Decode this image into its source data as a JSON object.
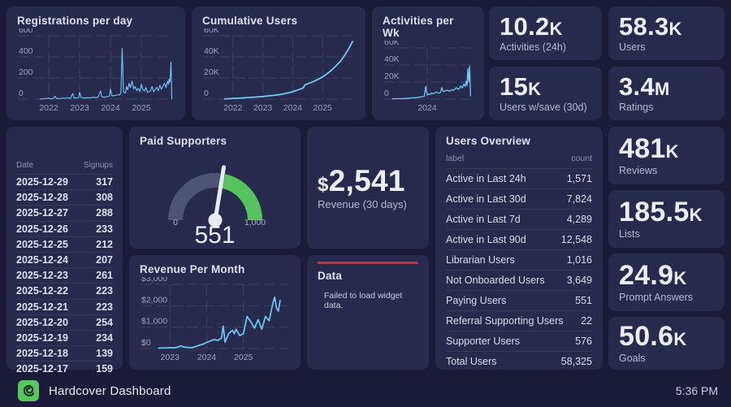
{
  "app": {
    "title": "Hardcover Dashboard",
    "time": "5:36 PM"
  },
  "colors": {
    "background": "#191b38",
    "panel": "#262b4e",
    "accent_blue": "#72c7f3",
    "gauge_green": "#56c45c",
    "gauge_gray": "#4d5374",
    "error_red": "#9e4350",
    "logo_green": "#54c55f"
  },
  "stats": {
    "top": [
      {
        "value": "10.2",
        "suffix": "K",
        "label": "Activities (24h)"
      },
      {
        "value": "58.3",
        "suffix": "K",
        "label": "Users"
      },
      {
        "value": "15",
        "suffix": "K",
        "label": "Users w/save (30d)"
      },
      {
        "value": "3.4",
        "suffix": "M",
        "label": "Ratings"
      }
    ],
    "right": [
      {
        "value": "481",
        "suffix": "K",
        "label": "Reviews"
      },
      {
        "value": "185.5",
        "suffix": "K",
        "label": "Lists"
      },
      {
        "value": "24.9",
        "suffix": "K",
        "label": "Prompt Answers"
      },
      {
        "value": "50.6",
        "suffix": "K",
        "label": "Goals"
      }
    ],
    "revenue": {
      "prefix": "$",
      "value": "2,541",
      "label": "Revenue (30 days)"
    }
  },
  "signups_table": {
    "headers": [
      "Date",
      "Signups"
    ],
    "rows": [
      [
        "2025-12-29",
        "317"
      ],
      [
        "2025-12-28",
        "308"
      ],
      [
        "2025-12-27",
        "288"
      ],
      [
        "2025-12-26",
        "233"
      ],
      [
        "2025-12-25",
        "212"
      ],
      [
        "2025-12-24",
        "207"
      ],
      [
        "2025-12-23",
        "261"
      ],
      [
        "2025-12-22",
        "223"
      ],
      [
        "2025-12-21",
        "223"
      ],
      [
        "2025-12-20",
        "254"
      ],
      [
        "2025-12-19",
        "234"
      ],
      [
        "2025-12-18",
        "139"
      ],
      [
        "2025-12-17",
        "159"
      ]
    ]
  },
  "users_overview": {
    "title": "Users Overview",
    "headers": [
      "label",
      "count"
    ],
    "rows": [
      [
        "Active in Last 24h",
        "1,571"
      ],
      [
        "Active in Last 30d",
        "7,824"
      ],
      [
        "Active in Last 7d",
        "4,289"
      ],
      [
        "Active in Last 90d",
        "12,548"
      ],
      [
        "Librarian Users",
        "1,016"
      ],
      [
        "Not Onboarded Users",
        "3,649"
      ],
      [
        "Paying Users",
        "551"
      ],
      [
        "Referral Supporting Users",
        "22"
      ],
      [
        "Supporter Users",
        "576"
      ],
      [
        "Total Users",
        "58,325"
      ]
    ]
  },
  "gauge": {
    "title": "Paid Supporters",
    "min": 0,
    "max": 1000,
    "value": 551,
    "min_label": "0",
    "max_label": "1,000",
    "value_label": "551"
  },
  "error_panel": {
    "title": "Data",
    "message": "Failed to load widget data."
  },
  "chart_data": [
    {
      "type": "line",
      "title": "Registrations per day",
      "xlabel": "",
      "ylabel": "",
      "xlim": [
        2021.0,
        2026.0
      ],
      "ylim": [
        0,
        600
      ],
      "y_ticks": [
        [
          0,
          "0"
        ],
        [
          200,
          "200"
        ],
        [
          400,
          "400"
        ],
        [
          600,
          "600"
        ]
      ],
      "x_ticks": [
        [
          2022,
          "2022"
        ],
        [
          2023,
          "2023"
        ],
        [
          2024,
          "2024"
        ],
        [
          2025,
          "2025"
        ]
      ],
      "line_color": "#72c7f3",
      "line_width": 1.1,
      "grid": true,
      "legend": "none",
      "points": [
        [
          2021.72,
          1
        ],
        [
          2021.85,
          3
        ],
        [
          2021.95,
          6
        ],
        [
          2022.0,
          10
        ],
        [
          2022.05,
          4
        ],
        [
          2022.15,
          6
        ],
        [
          2022.2,
          28
        ],
        [
          2022.25,
          7
        ],
        [
          2022.35,
          5
        ],
        [
          2022.45,
          9
        ],
        [
          2022.55,
          8
        ],
        [
          2022.6,
          14
        ],
        [
          2022.7,
          8
        ],
        [
          2022.78,
          52
        ],
        [
          2022.82,
          12
        ],
        [
          2022.9,
          10
        ],
        [
          2022.97,
          14
        ],
        [
          2023.0,
          64
        ],
        [
          2023.05,
          16
        ],
        [
          2023.15,
          10
        ],
        [
          2023.25,
          14
        ],
        [
          2023.35,
          12
        ],
        [
          2023.45,
          18
        ],
        [
          2023.5,
          14
        ],
        [
          2023.6,
          20
        ],
        [
          2023.68,
          78
        ],
        [
          2023.72,
          22
        ],
        [
          2023.8,
          18
        ],
        [
          2023.9,
          24
        ],
        [
          2023.97,
          30
        ],
        [
          2024.0,
          96
        ],
        [
          2024.05,
          30
        ],
        [
          2024.15,
          34
        ],
        [
          2024.25,
          42
        ],
        [
          2024.3,
          38
        ],
        [
          2024.34,
          62
        ],
        [
          2024.38,
          480
        ],
        [
          2024.42,
          70
        ],
        [
          2024.48,
          56
        ],
        [
          2024.52,
          120
        ],
        [
          2024.56,
          88
        ],
        [
          2024.6,
          150
        ],
        [
          2024.65,
          110
        ],
        [
          2024.7,
          170
        ],
        [
          2024.75,
          96
        ],
        [
          2024.8,
          120
        ],
        [
          2024.85,
          80
        ],
        [
          2024.9,
          100
        ],
        [
          2024.95,
          72
        ],
        [
          2025.0,
          140
        ],
        [
          2025.05,
          90
        ],
        [
          2025.1,
          76
        ],
        [
          2025.15,
          110
        ],
        [
          2025.2,
          64
        ],
        [
          2025.3,
          80
        ],
        [
          2025.35,
          120
        ],
        [
          2025.4,
          70
        ],
        [
          2025.45,
          90
        ],
        [
          2025.5,
          110
        ],
        [
          2025.55,
          80
        ],
        [
          2025.6,
          130
        ],
        [
          2025.65,
          95
        ],
        [
          2025.7,
          120
        ],
        [
          2025.75,
          150
        ],
        [
          2025.8,
          110
        ],
        [
          2025.85,
          170
        ],
        [
          2025.88,
          140
        ],
        [
          2025.9,
          190
        ],
        [
          2025.93,
          160
        ],
        [
          2025.96,
          350
        ],
        [
          2025.99,
          0
        ]
      ]
    },
    {
      "type": "line",
      "title": "Cumulative Users",
      "xlabel": "",
      "ylabel": "",
      "xlim": [
        2021.0,
        2026.0
      ],
      "ylim": [
        0,
        60000
      ],
      "y_ticks": [
        [
          0,
          "0"
        ],
        [
          20000,
          "20K"
        ],
        [
          40000,
          "40K"
        ],
        [
          60000,
          "60K"
        ]
      ],
      "x_ticks": [
        [
          2022,
          "2022"
        ],
        [
          2023,
          "2023"
        ],
        [
          2024,
          "2024"
        ],
        [
          2025,
          "2025"
        ]
      ],
      "line_color": "#72c7f3",
      "line_width": 1.8,
      "grid": true,
      "legend": "none",
      "points": [
        [
          2021.72,
          100
        ],
        [
          2022.0,
          700
        ],
        [
          2022.3,
          1100
        ],
        [
          2022.6,
          1600
        ],
        [
          2022.9,
          2200
        ],
        [
          2023.0,
          2500
        ],
        [
          2023.3,
          3400
        ],
        [
          2023.6,
          4400
        ],
        [
          2023.9,
          6200
        ],
        [
          2024.0,
          7000
        ],
        [
          2024.2,
          9000
        ],
        [
          2024.35,
          10500
        ],
        [
          2024.4,
          13200
        ],
        [
          2024.5,
          14500
        ],
        [
          2024.7,
          16800
        ],
        [
          2024.9,
          19500
        ],
        [
          2025.0,
          21000
        ],
        [
          2025.15,
          24000
        ],
        [
          2025.3,
          27500
        ],
        [
          2025.45,
          31500
        ],
        [
          2025.6,
          36000
        ],
        [
          2025.75,
          42000
        ],
        [
          2025.9,
          49000
        ],
        [
          2026.0,
          54500
        ]
      ]
    },
    {
      "type": "line",
      "title": "Activities per Wk",
      "xlabel": "",
      "ylabel": "",
      "xlim": [
        2023.0,
        2026.0
      ],
      "ylim": [
        0,
        60000
      ],
      "y_ticks": [
        [
          0,
          "0"
        ],
        [
          20000,
          "20K"
        ],
        [
          40000,
          "40K"
        ],
        [
          60000,
          "60K"
        ]
      ],
      "x_ticks": [
        [
          2024.5,
          "2024"
        ]
      ],
      "line_color": "#72c7f3",
      "line_width": 1.3,
      "grid": true,
      "legend": "none",
      "points": [
        [
          2023.3,
          400
        ],
        [
          2023.45,
          600
        ],
        [
          2023.6,
          500
        ],
        [
          2023.75,
          800
        ],
        [
          2023.9,
          1100
        ],
        [
          2024.0,
          1600
        ],
        [
          2024.1,
          1400
        ],
        [
          2024.2,
          2200
        ],
        [
          2024.3,
          2600
        ],
        [
          2024.4,
          3400
        ],
        [
          2024.45,
          14800
        ],
        [
          2024.5,
          4800
        ],
        [
          2024.55,
          6200
        ],
        [
          2024.6,
          5400
        ],
        [
          2024.65,
          7200
        ],
        [
          2024.7,
          6200
        ],
        [
          2024.8,
          8200
        ],
        [
          2024.9,
          7000
        ],
        [
          2024.95,
          7600
        ],
        [
          2025.0,
          13500
        ],
        [
          2025.05,
          8800
        ],
        [
          2025.1,
          9600
        ],
        [
          2025.2,
          10400
        ],
        [
          2025.25,
          9200
        ],
        [
          2025.35,
          11000
        ],
        [
          2025.4,
          10200
        ],
        [
          2025.5,
          13500
        ],
        [
          2025.55,
          11500
        ],
        [
          2025.6,
          12500
        ],
        [
          2025.65,
          15500
        ],
        [
          2025.7,
          13000
        ],
        [
          2025.75,
          17500
        ],
        [
          2025.8,
          15000
        ],
        [
          2025.83,
          21000
        ],
        [
          2025.86,
          16000
        ],
        [
          2025.89,
          35500
        ],
        [
          2025.92,
          20000
        ],
        [
          2025.95,
          38500
        ],
        [
          2025.98,
          4000
        ]
      ]
    },
    {
      "type": "line",
      "title": "Revenue Per Month",
      "xlabel": "",
      "ylabel": "",
      "xlim": [
        2022.2,
        2026.2
      ],
      "ylim": [
        0,
        3000
      ],
      "y_ticks": [
        [
          0,
          "$0"
        ],
        [
          1000,
          "$1,000"
        ],
        [
          2000,
          "$2,000"
        ],
        [
          3000,
          "$3,000"
        ]
      ],
      "x_ticks": [
        [
          2023,
          "2023"
        ],
        [
          2024,
          "2024"
        ],
        [
          2025,
          "2025"
        ]
      ],
      "line_color": "#72c7f3",
      "line_width": 1.7,
      "grid": true,
      "legend": "none",
      "points": [
        [
          2022.7,
          20
        ],
        [
          2022.8,
          30
        ],
        [
          2022.9,
          25
        ],
        [
          2023.0,
          40
        ],
        [
          2023.1,
          35
        ],
        [
          2023.2,
          60
        ],
        [
          2023.3,
          120
        ],
        [
          2023.4,
          60
        ],
        [
          2023.5,
          50
        ],
        [
          2023.6,
          40
        ],
        [
          2023.7,
          90
        ],
        [
          2023.8,
          150
        ],
        [
          2023.9,
          200
        ],
        [
          2024.0,
          280
        ],
        [
          2024.1,
          350
        ],
        [
          2024.2,
          420
        ],
        [
          2024.3,
          380
        ],
        [
          2024.4,
          480
        ],
        [
          2024.45,
          1050
        ],
        [
          2024.5,
          300
        ],
        [
          2024.6,
          700
        ],
        [
          2024.7,
          850
        ],
        [
          2024.75,
          700
        ],
        [
          2024.8,
          900
        ],
        [
          2024.9,
          600
        ],
        [
          2025.0,
          700
        ],
        [
          2025.1,
          1500
        ],
        [
          2025.2,
          1250
        ],
        [
          2025.3,
          950
        ],
        [
          2025.4,
          1350
        ],
        [
          2025.5,
          900
        ],
        [
          2025.6,
          1500
        ],
        [
          2025.7,
          1300
        ],
        [
          2025.75,
          1700
        ],
        [
          2025.8,
          2100
        ],
        [
          2025.85,
          2400
        ],
        [
          2025.9,
          1900
        ],
        [
          2025.95,
          1750
        ],
        [
          2026.0,
          2250
        ]
      ]
    }
  ]
}
